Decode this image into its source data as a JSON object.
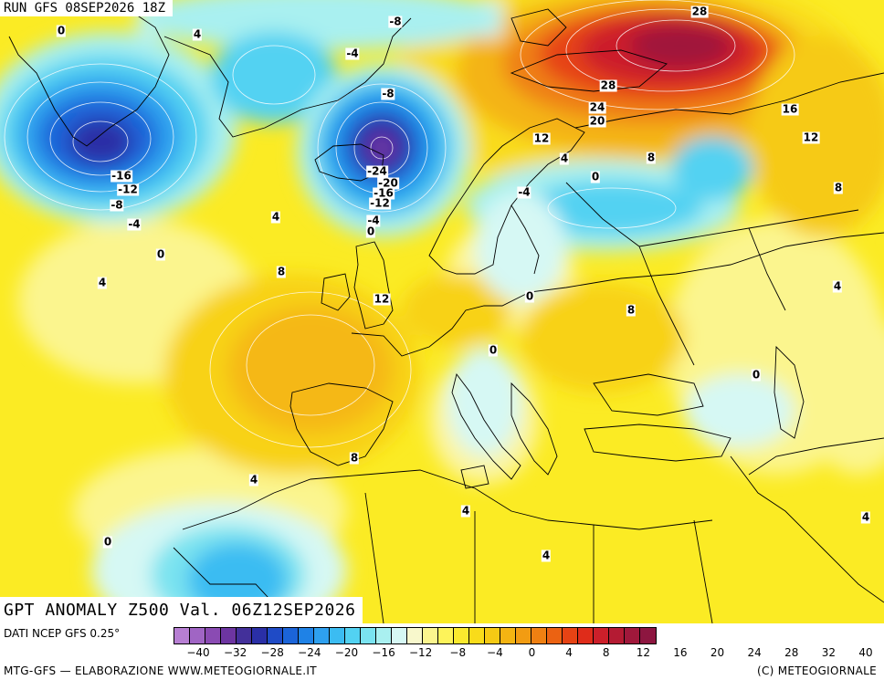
{
  "header": {
    "run_title": "RUN GFS 08SEP2026 18Z"
  },
  "map": {
    "title": "GPT ANOMALY Z500 Val. 06Z12SEP2026",
    "contour_labels": [
      "0",
      "4",
      "-8",
      "-4",
      "-8",
      "-16",
      "-12",
      "-8",
      "-4",
      "0",
      "4",
      "-24",
      "-20",
      "-16",
      "-12",
      "-4",
      "0",
      "28",
      "28",
      "24",
      "20",
      "16",
      "12",
      "12",
      "4",
      "8",
      "0",
      "8",
      "-4",
      "8",
      "0",
      "4",
      "12",
      "8",
      "0",
      "0",
      "4",
      "8",
      "4",
      "4",
      "4",
      "0",
      "4"
    ]
  },
  "legend": {
    "data_source": "DATI NCEP GFS 0.25°",
    "scale_ticks": [
      "−40",
      "−32",
      "−28",
      "−24",
      "−20",
      "−16",
      "−12",
      "−8",
      "−4",
      "0",
      "4",
      "8",
      "12",
      "16",
      "20",
      "24",
      "28",
      "32",
      "40"
    ],
    "colors": [
      "#b77fd3",
      "#a065c4",
      "#8a4bb3",
      "#6d35a1",
      "#43309a",
      "#2a2fa6",
      "#1f4bc6",
      "#1b64d8",
      "#1f82e6",
      "#2ea0ef",
      "#3bbcf2",
      "#52d2f2",
      "#7ae3f0",
      "#a9f0f0",
      "#d6f8f4",
      "#f8f8cc",
      "#fbf58e",
      "#fdf35a",
      "#fbe92e",
      "#f9dc1a",
      "#f6ca14",
      "#f4b412",
      "#f29c12",
      "#ef8012",
      "#eb6212",
      "#e64314",
      "#df2c1a",
      "#cc1f2a",
      "#b41b33",
      "#a0183b",
      "#8d1640"
    ],
    "credit_left": "MTG-GFS — ELABORAZIONE WWW.METEOGIORNALE.IT",
    "credit_right": "(C) METEOGIORNALE"
  }
}
